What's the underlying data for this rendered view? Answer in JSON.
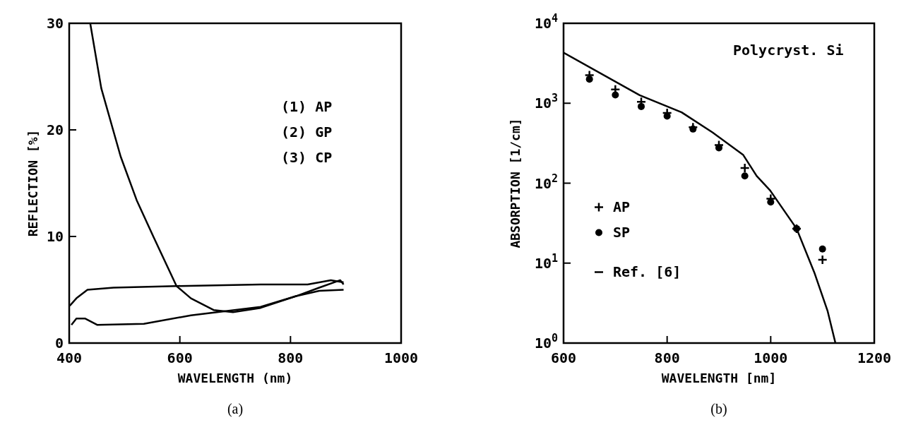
{
  "chart_data": [
    {
      "type": "line",
      "xlabel": "WAVELENGTH (nm)",
      "ylabel": "REFLECTION [%]",
      "xlim": [
        400,
        1000
      ],
      "ylim": [
        0,
        30
      ],
      "xticks": [
        400,
        600,
        800,
        1000
      ],
      "yticks": [
        0,
        10,
        20,
        30
      ],
      "legend": false,
      "annotations": [
        "(1) AP",
        "(2) GP",
        "(3) CP",
        "(a)"
      ],
      "series": [
        {
          "color": "#000000",
          "x": [
            438,
            458,
            493,
            522,
            552,
            594,
            620,
            661,
            696,
            746,
            810,
            852,
            896
          ],
          "values": [
            30,
            23.9,
            17.5,
            13.4,
            10,
            5.35,
            4.2,
            3.1,
            2.9,
            3.3,
            4.4,
            4.9,
            5.0
          ]
        },
        {
          "color": "#000000",
          "x": [
            401,
            413,
            433,
            480,
            594,
            746,
            831,
            873,
            896
          ],
          "values": [
            3.5,
            4.2,
            5.0,
            5.2,
            5.35,
            5.5,
            5.5,
            5.9,
            5.7
          ]
        },
        {
          "color": "#000000",
          "x": [
            404,
            413,
            429,
            451,
            535,
            620,
            683,
            746,
            810,
            852,
            890,
            896
          ],
          "values": [
            1.7,
            2.3,
            2.3,
            1.7,
            1.8,
            2.6,
            3.0,
            3.4,
            4.4,
            5.2,
            5.9,
            5.5
          ]
        }
      ]
    },
    {
      "type": "scatter",
      "xlabel": "WAVELENGTH [nm]",
      "ylabel": "ABSORPTION [1/cm]",
      "xlim": [
        600,
        1200
      ],
      "ylim": [
        1,
        10000
      ],
      "log": "y",
      "xticks": [
        600,
        800,
        1000,
        1200
      ],
      "yticks": [
        {
          "value": 1,
          "label": "10$^{0}$"
        },
        {
          "value": 10,
          "label": "10$^{1}$"
        },
        {
          "value": 100,
          "label": "10$^{2}$"
        },
        {
          "value": 1000,
          "label": "10$^{3}$"
        },
        {
          "value": 10000,
          "label": "10$^{4}$"
        }
      ],
      "legend": "left",
      "annotations": [
        "Polycryst. Si",
        "(b)"
      ],
      "series": [
        {
          "name": "AP",
          "marker": "cross",
          "color": "#000000",
          "x": [
            650,
            700,
            750,
            800,
            850,
            900,
            950,
            1000,
            1050,
            1100
          ],
          "values": [
            2240,
            1490,
            1040,
            755,
            500,
            300,
            155,
            64,
            27,
            11
          ]
        },
        {
          "name": "SP",
          "marker": "circle",
          "color": "#000000",
          "x": [
            650,
            700,
            750,
            800,
            850,
            900,
            950,
            1000,
            1050,
            1100
          ],
          "values": [
            2000,
            1270,
            910,
            690,
            475,
            277,
            123,
            58,
            27,
            15
          ]
        },
        {
          "name": "Ref. [6]",
          "type": "line",
          "marker": "none",
          "color": "#000000",
          "x": [
            600,
            747,
            828,
            888,
            947,
            973,
            999,
            1050,
            1085,
            1110,
            1125
          ],
          "values": [
            4300,
            1260,
            770,
            430,
            225,
            123,
            81,
            27,
            7.4,
            2.5,
            1
          ]
        }
      ]
    }
  ]
}
